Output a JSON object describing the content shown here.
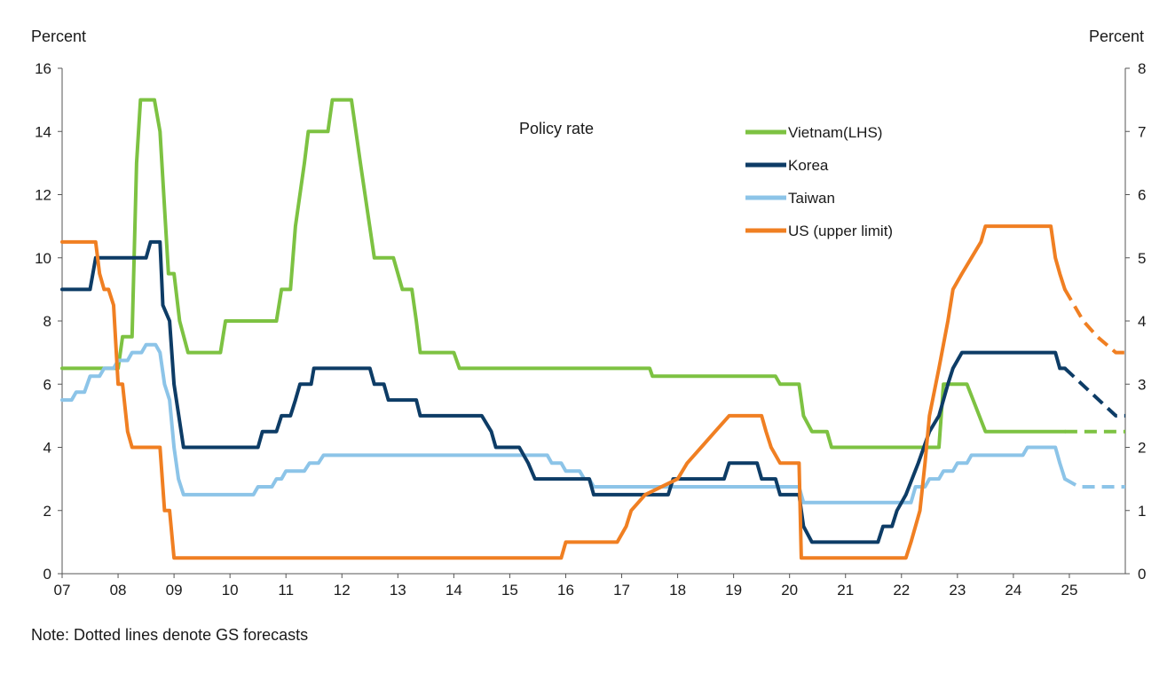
{
  "chart_data": {
    "type": "line",
    "title": "Policy rate",
    "ylabel_left": "Percent",
    "ylabel_right": "Percent",
    "note": "Note: Dotted lines denote GS forecasts",
    "x_range": [
      2007,
      2026
    ],
    "x_ticks": [
      "07",
      "08",
      "09",
      "10",
      "11",
      "12",
      "13",
      "14",
      "15",
      "16",
      "17",
      "18",
      "19",
      "20",
      "21",
      "22",
      "23",
      "24",
      "25"
    ],
    "x_tick_values": [
      2007,
      2008,
      2009,
      2010,
      2011,
      2012,
      2013,
      2014,
      2015,
      2016,
      2017,
      2018,
      2019,
      2020,
      2021,
      2022,
      2023,
      2024,
      2025
    ],
    "ylim_left": [
      0,
      16
    ],
    "yticks_left": [
      0,
      2,
      4,
      6,
      8,
      10,
      12,
      14,
      16
    ],
    "ylim_right": [
      0,
      8
    ],
    "yticks_right": [
      0,
      1,
      2,
      3,
      4,
      5,
      6,
      7,
      8
    ],
    "legend_position": "top-right",
    "grid": false,
    "series": [
      {
        "name": "Vietnam(LHS)",
        "axis": "left",
        "color": "#7dc242",
        "points": [
          [
            2007,
            6.5
          ],
          [
            2008,
            6.5
          ],
          [
            2008.08,
            7.5
          ],
          [
            2008.25,
            7.5
          ],
          [
            2008.33,
            13
          ],
          [
            2008.4,
            15
          ],
          [
            2008.65,
            15
          ],
          [
            2008.75,
            14
          ],
          [
            2008.9,
            9.5
          ],
          [
            2009,
            9.5
          ],
          [
            2009.1,
            8
          ],
          [
            2009.25,
            7
          ],
          [
            2009.83,
            7
          ],
          [
            2009.92,
            8
          ],
          [
            2010.83,
            8
          ],
          [
            2010.92,
            9
          ],
          [
            2011.08,
            9
          ],
          [
            2011.17,
            11
          ],
          [
            2011.33,
            13
          ],
          [
            2011.4,
            14
          ],
          [
            2011.75,
            14
          ],
          [
            2011.83,
            15
          ],
          [
            2012.17,
            15
          ],
          [
            2012.33,
            13
          ],
          [
            2012.58,
            10
          ],
          [
            2012.92,
            10
          ],
          [
            2013.08,
            9
          ],
          [
            2013.25,
            9
          ],
          [
            2013.33,
            8
          ],
          [
            2013.4,
            7
          ],
          [
            2014,
            7
          ],
          [
            2014.1,
            6.5
          ],
          [
            2017.5,
            6.5
          ],
          [
            2017.55,
            6.25
          ],
          [
            2019.75,
            6.25
          ],
          [
            2019.83,
            6
          ],
          [
            2020.17,
            6
          ],
          [
            2020.25,
            5
          ],
          [
            2020.4,
            4.5
          ],
          [
            2020.67,
            4.5
          ],
          [
            2020.75,
            4
          ],
          [
            2022.67,
            4
          ],
          [
            2022.75,
            6
          ],
          [
            2023.17,
            6
          ],
          [
            2023.5,
            4.5
          ],
          [
            2024.92,
            4.5
          ]
        ],
        "forecast_points": [
          [
            2024.92,
            4.5
          ],
          [
            2026,
            4.5
          ]
        ]
      },
      {
        "name": "Korea",
        "axis": "right",
        "color": "#0d3c66",
        "points": [
          [
            2007,
            4.5
          ],
          [
            2007.5,
            4.5
          ],
          [
            2007.6,
            5
          ],
          [
            2008.5,
            5
          ],
          [
            2008.58,
            5.25
          ],
          [
            2008.75,
            5.25
          ],
          [
            2008.8,
            4.25
          ],
          [
            2008.92,
            4
          ],
          [
            2009,
            3
          ],
          [
            2009.17,
            2
          ],
          [
            2010.5,
            2
          ],
          [
            2010.58,
            2.25
          ],
          [
            2010.83,
            2.25
          ],
          [
            2010.92,
            2.5
          ],
          [
            2011.08,
            2.5
          ],
          [
            2011.17,
            2.75
          ],
          [
            2011.25,
            3
          ],
          [
            2011.45,
            3
          ],
          [
            2011.5,
            3.25
          ],
          [
            2012.5,
            3.25
          ],
          [
            2012.58,
            3
          ],
          [
            2012.75,
            3
          ],
          [
            2012.83,
            2.75
          ],
          [
            2013.33,
            2.75
          ],
          [
            2013.4,
            2.5
          ],
          [
            2014.5,
            2.5
          ],
          [
            2014.67,
            2.25
          ],
          [
            2014.75,
            2
          ],
          [
            2015.17,
            2
          ],
          [
            2015.33,
            1.75
          ],
          [
            2015.45,
            1.5
          ],
          [
            2016.42,
            1.5
          ],
          [
            2016.5,
            1.25
          ],
          [
            2017.83,
            1.25
          ],
          [
            2017.92,
            1.5
          ],
          [
            2018.83,
            1.5
          ],
          [
            2018.92,
            1.75
          ],
          [
            2019.42,
            1.75
          ],
          [
            2019.5,
            1.5
          ],
          [
            2019.75,
            1.5
          ],
          [
            2019.83,
            1.25
          ],
          [
            2020.17,
            1.25
          ],
          [
            2020.25,
            0.75
          ],
          [
            2020.4,
            0.5
          ],
          [
            2021.58,
            0.5
          ],
          [
            2021.67,
            0.75
          ],
          [
            2021.83,
            0.75
          ],
          [
            2021.92,
            1
          ],
          [
            2022.08,
            1.25
          ],
          [
            2022.3,
            1.75
          ],
          [
            2022.5,
            2.25
          ],
          [
            2022.67,
            2.5
          ],
          [
            2022.83,
            3
          ],
          [
            2022.92,
            3.25
          ],
          [
            2023.08,
            3.5
          ],
          [
            2024.75,
            3.5
          ],
          [
            2024.83,
            3.25
          ],
          [
            2024.92,
            3.25
          ]
        ],
        "forecast_points": [
          [
            2024.92,
            3.25
          ],
          [
            2025.83,
            2.5
          ],
          [
            2026,
            2.5
          ]
        ]
      },
      {
        "name": "Taiwan",
        "axis": "right",
        "color": "#8cc4e8",
        "points": [
          [
            2007,
            2.75
          ],
          [
            2007.17,
            2.75
          ],
          [
            2007.25,
            2.875
          ],
          [
            2007.4,
            2.875
          ],
          [
            2007.5,
            3.125
          ],
          [
            2007.67,
            3.125
          ],
          [
            2007.75,
            3.25
          ],
          [
            2007.92,
            3.25
          ],
          [
            2008,
            3.375
          ],
          [
            2008.17,
            3.375
          ],
          [
            2008.25,
            3.5
          ],
          [
            2008.42,
            3.5
          ],
          [
            2008.5,
            3.625
          ],
          [
            2008.67,
            3.625
          ],
          [
            2008.75,
            3.5
          ],
          [
            2008.83,
            3
          ],
          [
            2008.92,
            2.75
          ],
          [
            2009,
            2
          ],
          [
            2009.08,
            1.5
          ],
          [
            2009.17,
            1.25
          ],
          [
            2010.42,
            1.25
          ],
          [
            2010.5,
            1.375
          ],
          [
            2010.75,
            1.375
          ],
          [
            2010.83,
            1.5
          ],
          [
            2010.92,
            1.5
          ],
          [
            2011,
            1.625
          ],
          [
            2011.33,
            1.625
          ],
          [
            2011.42,
            1.75
          ],
          [
            2011.58,
            1.75
          ],
          [
            2011.67,
            1.875
          ],
          [
            2015.67,
            1.875
          ],
          [
            2015.75,
            1.75
          ],
          [
            2015.92,
            1.75
          ],
          [
            2016,
            1.625
          ],
          [
            2016.25,
            1.625
          ],
          [
            2016.33,
            1.5
          ],
          [
            2016.42,
            1.5
          ],
          [
            2016.5,
            1.375
          ],
          [
            2019.92,
            1.375
          ],
          [
            2020.17,
            1.375
          ],
          [
            2020.25,
            1.125
          ],
          [
            2021.92,
            1.125
          ],
          [
            2022.17,
            1.125
          ],
          [
            2022.25,
            1.375
          ],
          [
            2022.42,
            1.375
          ],
          [
            2022.5,
            1.5
          ],
          [
            2022.67,
            1.5
          ],
          [
            2022.75,
            1.625
          ],
          [
            2022.92,
            1.625
          ],
          [
            2023,
            1.75
          ],
          [
            2023.17,
            1.75
          ],
          [
            2023.25,
            1.875
          ],
          [
            2024.17,
            1.875
          ],
          [
            2024.25,
            2
          ],
          [
            2024.75,
            2
          ],
          [
            2024.83,
            1.75
          ],
          [
            2024.92,
            1.5
          ]
        ],
        "forecast_points": [
          [
            2024.92,
            1.5
          ],
          [
            2025.17,
            1.375
          ],
          [
            2026,
            1.375
          ]
        ]
      },
      {
        "name": "US (upper limit)",
        "axis": "right",
        "color": "#f07f22",
        "points": [
          [
            2007,
            5.25
          ],
          [
            2007.6,
            5.25
          ],
          [
            2007.67,
            4.75
          ],
          [
            2007.75,
            4.5
          ],
          [
            2007.83,
            4.5
          ],
          [
            2007.92,
            4.25
          ],
          [
            2008,
            3
          ],
          [
            2008.08,
            3
          ],
          [
            2008.17,
            2.25
          ],
          [
            2008.25,
            2
          ],
          [
            2008.75,
            2
          ],
          [
            2008.83,
            1
          ],
          [
            2008.92,
            1
          ],
          [
            2009,
            0.25
          ],
          [
            2015.92,
            0.25
          ],
          [
            2016,
            0.5
          ],
          [
            2016.92,
            0.5
          ],
          [
            2017.08,
            0.75
          ],
          [
            2017.17,
            1
          ],
          [
            2017.42,
            1.25
          ],
          [
            2018,
            1.5
          ],
          [
            2018.17,
            1.75
          ],
          [
            2018.42,
            2
          ],
          [
            2018.67,
            2.25
          ],
          [
            2018.92,
            2.5
          ],
          [
            2019.5,
            2.5
          ],
          [
            2019.58,
            2.25
          ],
          [
            2019.67,
            2
          ],
          [
            2019.83,
            1.75
          ],
          [
            2020.17,
            1.75
          ],
          [
            2020.21,
            0.25
          ],
          [
            2022.08,
            0.25
          ],
          [
            2022.17,
            0.5
          ],
          [
            2022.33,
            1
          ],
          [
            2022.42,
            1.75
          ],
          [
            2022.5,
            2.5
          ],
          [
            2022.67,
            3.25
          ],
          [
            2022.83,
            4
          ],
          [
            2022.92,
            4.5
          ],
          [
            2023.08,
            4.75
          ],
          [
            2023.25,
            5
          ],
          [
            2023.42,
            5.25
          ],
          [
            2023.5,
            5.5
          ],
          [
            2024.67,
            5.5
          ],
          [
            2024.75,
            5
          ],
          [
            2024.83,
            4.75
          ],
          [
            2024.92,
            4.5
          ]
        ],
        "forecast_points": [
          [
            2024.92,
            4.5
          ],
          [
            2025.25,
            4
          ],
          [
            2025.5,
            3.75
          ],
          [
            2025.83,
            3.5
          ],
          [
            2026,
            3.5
          ]
        ]
      }
    ]
  }
}
